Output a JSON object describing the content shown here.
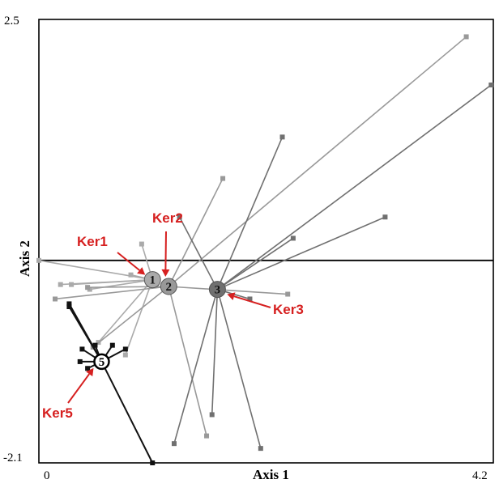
{
  "chart_data": {
    "type": "scatter",
    "title": "",
    "xlabel": "Axis 1",
    "ylabel": "Axis 2",
    "xlim": [
      0,
      4.2
    ],
    "ylim": [
      -2.1,
      2.5
    ],
    "x_tick_labels": [
      "0",
      "4.2"
    ],
    "y_tick_labels": [
      "2.5",
      "-2.1"
    ],
    "grid": false,
    "legend": "none",
    "reference_lines": {
      "y": 0
    },
    "groups": [
      {
        "id": "1",
        "annotation": "Ker1",
        "color": "#aaaaaa",
        "centroid": {
          "x": 1.05,
          "y": -0.2
        },
        "points": [
          {
            "x": 0.0,
            "y": 0.0
          },
          {
            "x": 0.2,
            "y": -0.25
          },
          {
            "x": 0.47,
            "y": -0.3
          },
          {
            "x": 0.85,
            "y": -0.15
          },
          {
            "x": 0.95,
            "y": 0.17
          },
          {
            "x": 0.55,
            "y": -0.85
          },
          {
            "x": 0.8,
            "y": -0.98
          },
          {
            "x": 0.3,
            "y": -0.25
          }
        ]
      },
      {
        "id": "2",
        "annotation": "Ker2",
        "color": "#999999",
        "centroid": {
          "x": 1.2,
          "y": -0.27
        },
        "points": [
          {
            "x": 3.95,
            "y": 2.32
          },
          {
            "x": 1.7,
            "y": 0.85
          },
          {
            "x": 2.3,
            "y": -0.35
          },
          {
            "x": 0.15,
            "y": -0.4
          },
          {
            "x": 0.5,
            "y": -0.9
          },
          {
            "x": 1.55,
            "y": -1.82
          },
          {
            "x": 0.45,
            "y": -0.28
          }
        ]
      },
      {
        "id": "3",
        "annotation": "Ker3",
        "color": "#707070",
        "centroid": {
          "x": 1.65,
          "y": -0.3
        },
        "points": [
          {
            "x": 4.18,
            "y": 1.82
          },
          {
            "x": 2.25,
            "y": 1.28
          },
          {
            "x": 3.2,
            "y": 0.45
          },
          {
            "x": 2.35,
            "y": 0.23
          },
          {
            "x": 1.25,
            "y": -1.9
          },
          {
            "x": 2.05,
            "y": -1.95
          },
          {
            "x": 1.3,
            "y": 0.45
          },
          {
            "x": 1.95,
            "y": -0.4
          },
          {
            "x": 1.6,
            "y": -1.6
          }
        ]
      },
      {
        "id": "5",
        "annotation": "Ker5",
        "color": "#111111",
        "centroid": {
          "x": 0.58,
          "y": -1.05
        },
        "points": [
          {
            "x": 0.28,
            "y": -0.45
          },
          {
            "x": 1.05,
            "y": -2.1
          },
          {
            "x": 0.68,
            "y": -0.88
          },
          {
            "x": 0.8,
            "y": -0.92
          },
          {
            "x": 0.38,
            "y": -1.05
          },
          {
            "x": 0.4,
            "y": -0.92
          },
          {
            "x": 0.52,
            "y": -0.88
          },
          {
            "x": 0.45,
            "y": -1.12
          },
          {
            "x": 0.28,
            "y": -0.48
          }
        ]
      }
    ]
  }
}
